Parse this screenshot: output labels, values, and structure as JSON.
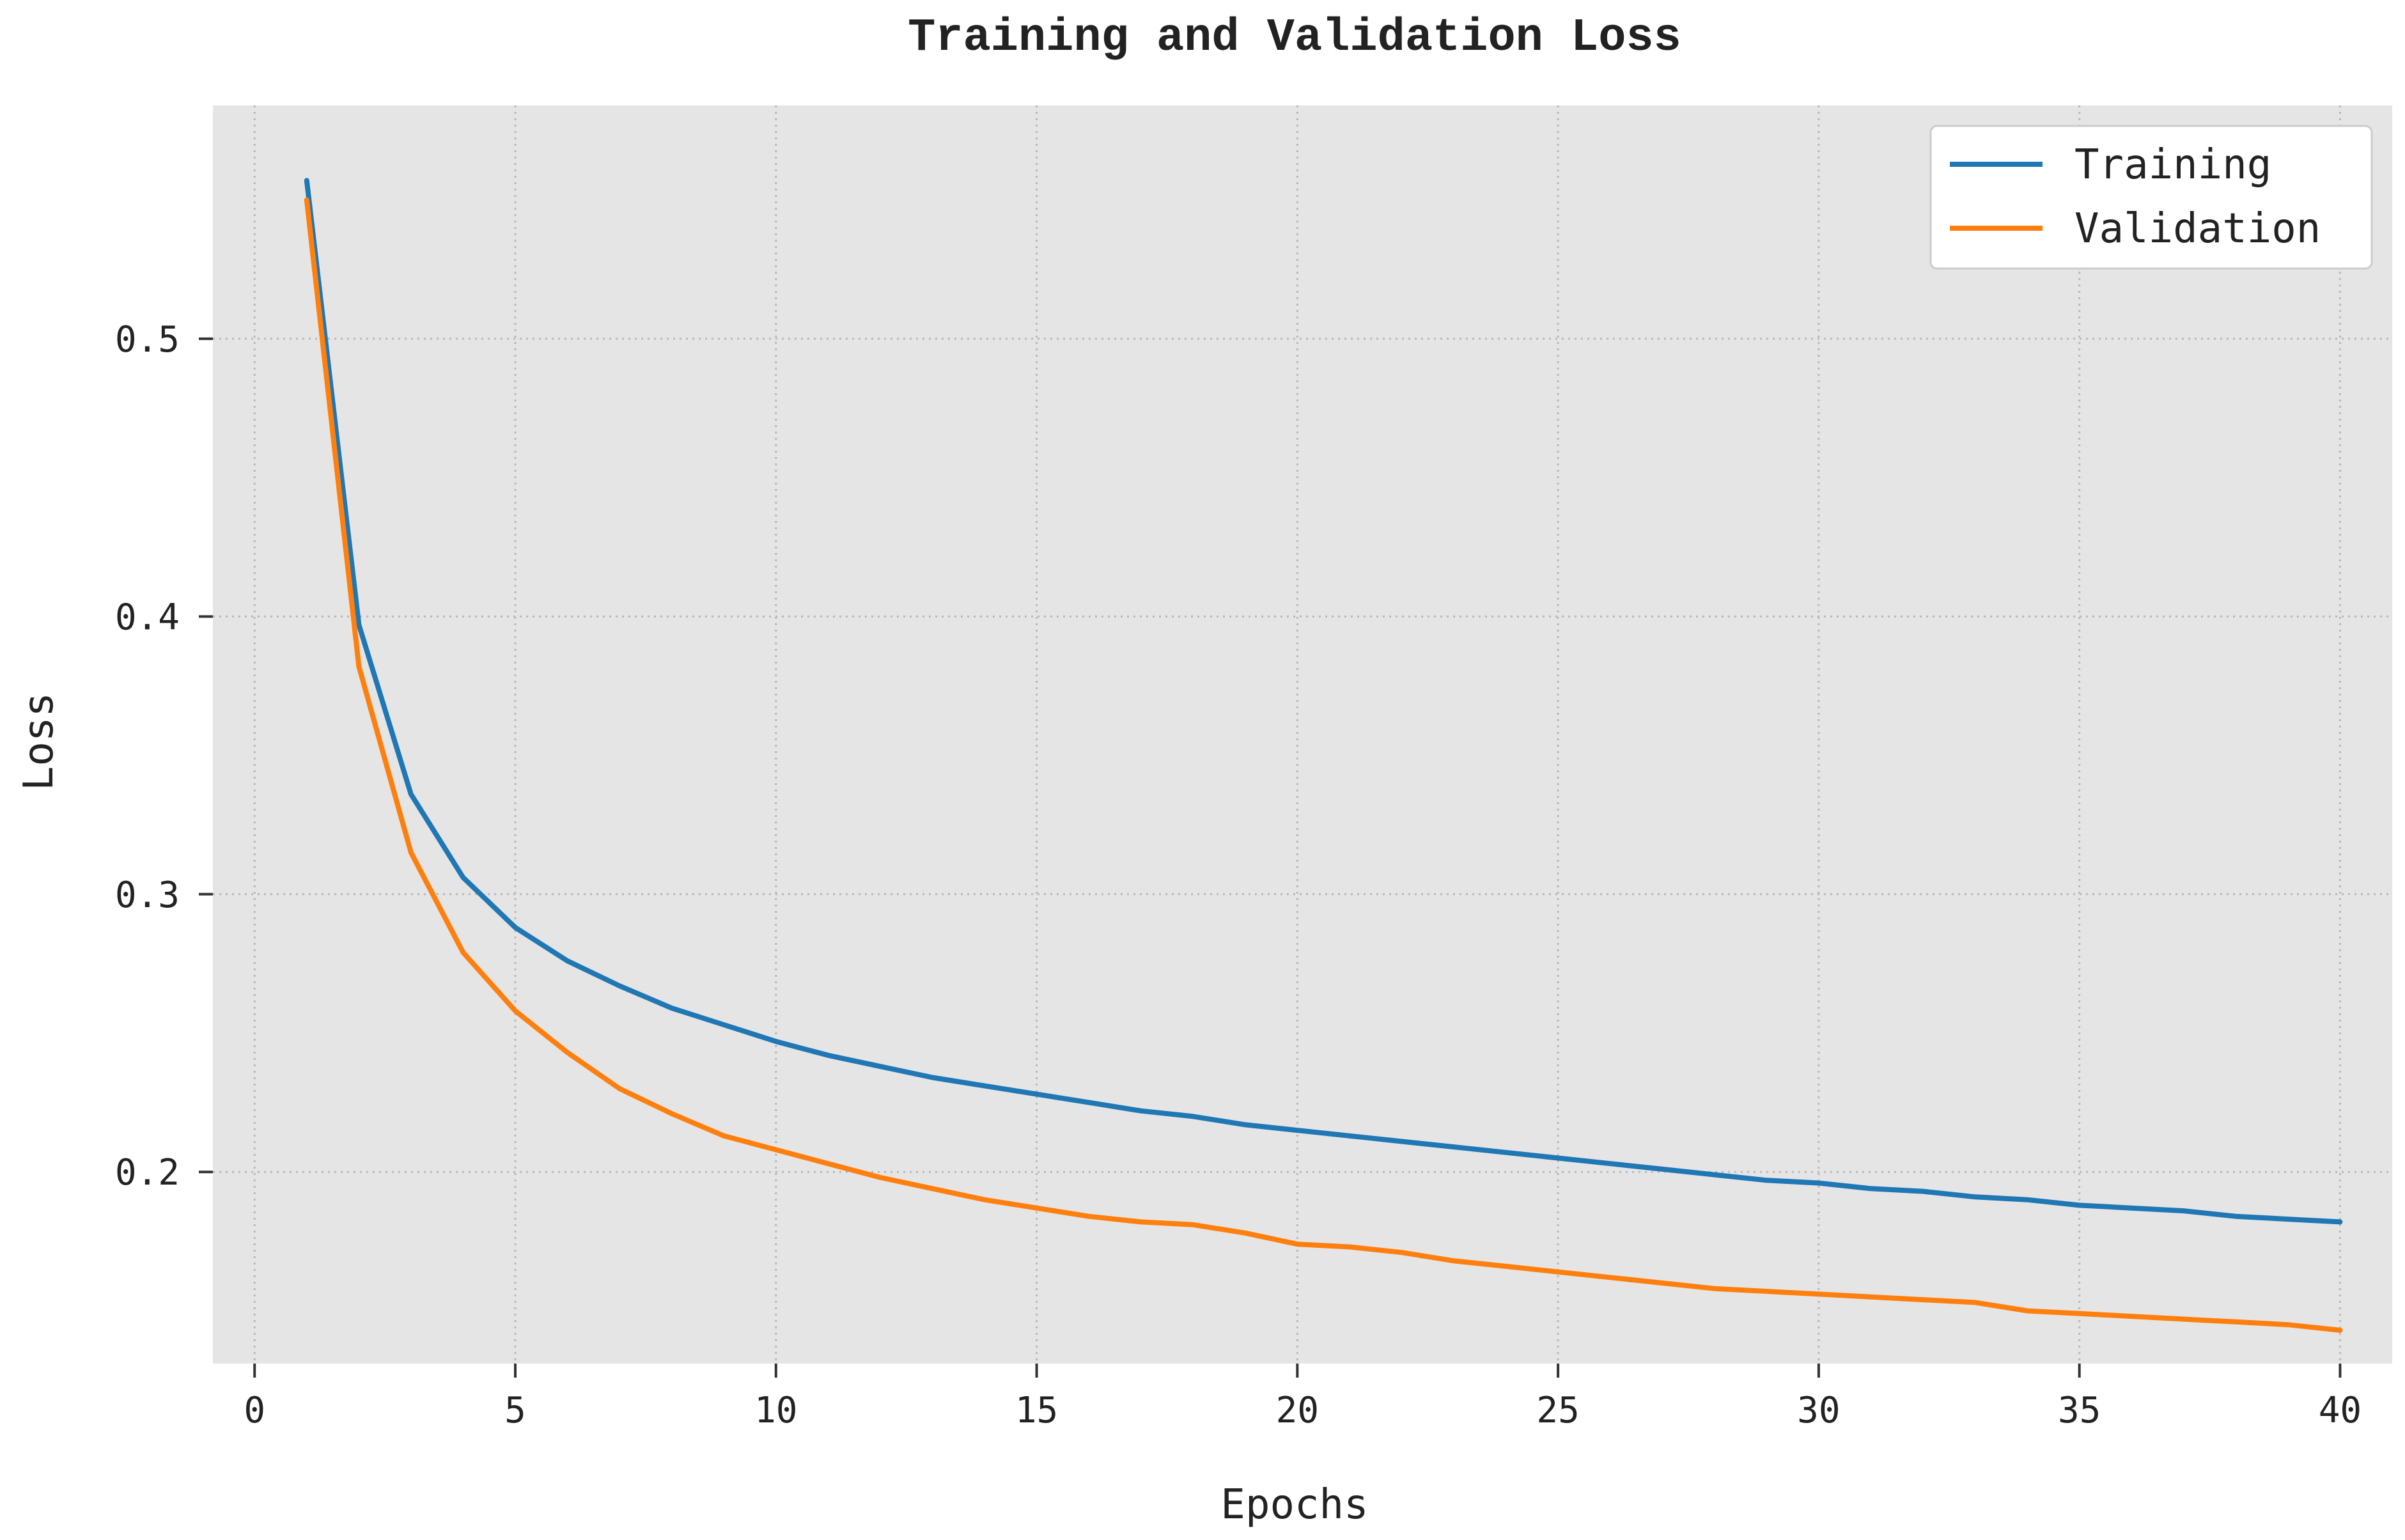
{
  "chart_data": {
    "type": "line",
    "title": "Training and Validation Loss",
    "xlabel": "Epochs",
    "ylabel": "Loss",
    "xlim": [
      -0.8,
      41.0
    ],
    "ylim": [
      0.131,
      0.584
    ],
    "xticks": [
      0,
      5,
      10,
      15,
      20,
      25,
      30,
      35,
      40
    ],
    "yticks": [
      0.2,
      0.3,
      0.4,
      0.5
    ],
    "ytick_labels": [
      "0.2",
      "0.3",
      "0.4",
      "0.5"
    ],
    "grid": true,
    "legend_position": "top-right",
    "x": [
      1,
      2,
      3,
      4,
      5,
      6,
      7,
      8,
      9,
      10,
      11,
      12,
      13,
      14,
      15,
      16,
      17,
      18,
      19,
      20,
      21,
      22,
      23,
      24,
      25,
      26,
      27,
      28,
      29,
      30,
      31,
      32,
      33,
      34,
      35,
      36,
      37,
      38,
      39,
      40
    ],
    "series": [
      {
        "name": "Training",
        "color": "#1f77b4",
        "values": [
          0.557,
          0.397,
          0.336,
          0.306,
          0.288,
          0.276,
          0.267,
          0.259,
          0.253,
          0.247,
          0.242,
          0.238,
          0.234,
          0.231,
          0.228,
          0.225,
          0.222,
          0.22,
          0.217,
          0.215,
          0.213,
          0.211,
          0.209,
          0.207,
          0.205,
          0.203,
          0.201,
          0.199,
          0.197,
          0.196,
          0.194,
          0.193,
          0.191,
          0.19,
          0.188,
          0.187,
          0.186,
          0.184,
          0.183,
          0.182
        ]
      },
      {
        "name": "Validation",
        "color": "#ff7f0e",
        "values": [
          0.55,
          0.382,
          0.315,
          0.279,
          0.258,
          0.243,
          0.23,
          0.221,
          0.213,
          0.208,
          0.203,
          0.198,
          0.194,
          0.19,
          0.187,
          0.184,
          0.182,
          0.181,
          0.178,
          0.174,
          0.173,
          0.171,
          0.168,
          0.166,
          0.164,
          0.162,
          0.16,
          0.158,
          0.157,
          0.156,
          0.155,
          0.154,
          0.153,
          0.15,
          0.149,
          0.148,
          0.147,
          0.146,
          0.145,
          0.143
        ]
      }
    ]
  }
}
